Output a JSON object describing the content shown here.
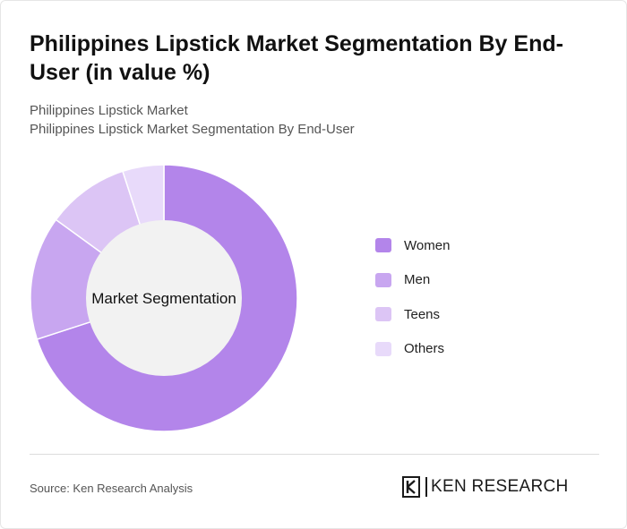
{
  "title": "Philippines Lipstick Market Segmentation By End-User (in value %)",
  "subtitle_1": "Philippines Lipstick Market",
  "subtitle_2": "Philippines Lipstick Market Segmentation By End-User",
  "source": "Source: Ken Research Analysis",
  "logo_text": "KEN RESEARCH",
  "chart_data": {
    "type": "pie",
    "style": "donut",
    "center_label": "Market Segmentation",
    "categories": [
      "Women",
      "Men",
      "Teens",
      "Others"
    ],
    "values": [
      70,
      15,
      10,
      5
    ],
    "colors": [
      "#b385ea",
      "#c8a6f0",
      "#dcc5f5",
      "#e8dafa"
    ],
    "legend_position": "right"
  }
}
